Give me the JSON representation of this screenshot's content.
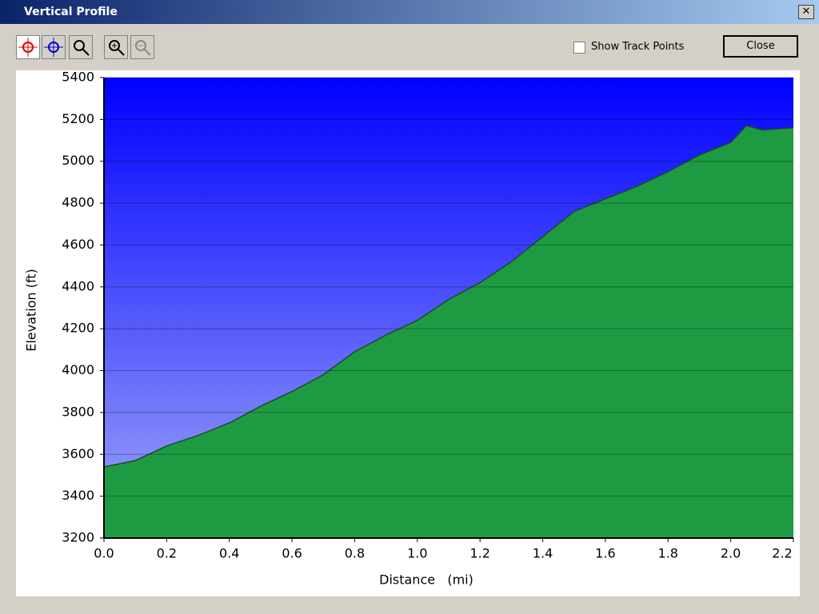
{
  "window": {
    "title": "Vertical Profile",
    "checkbox_label": "Show Track Points",
    "close_button": "Close"
  },
  "chart_data": {
    "type": "area",
    "x_label": "Distance   (mi)",
    "y_label": "Elevation (ft)",
    "x": [
      0,
      0.1,
      0.2,
      0.3,
      0.4,
      0.5,
      0.6,
      0.7,
      0.8,
      0.9,
      1.0,
      1.1,
      1.2,
      1.3,
      1.4,
      1.5,
      1.6,
      1.7,
      1.8,
      1.9,
      2.0,
      2.05,
      2.1,
      2.2
    ],
    "values": [
      3540,
      3570,
      3640,
      3690,
      3750,
      3830,
      3900,
      3980,
      4090,
      4170,
      4240,
      4340,
      4420,
      4520,
      4640,
      4760,
      4820,
      4880,
      4950,
      5030,
      5090,
      5170,
      5150,
      5160
    ],
    "color": "#1fa046",
    "xlim": [
      0,
      2.2
    ],
    "ylim": [
      3200,
      5400
    ],
    "xticks": [
      {
        "value": 0,
        "label": "0.0"
      },
      0.2,
      0.4,
      0.6,
      0.8,
      {
        "value": 1,
        "label": "1.0"
      },
      1.2,
      1.4,
      1.6,
      1.8,
      {
        "value": 2,
        "label": "2.0"
      },
      2.2
    ],
    "yticks": [
      3200,
      3400,
      3600,
      3800,
      4000,
      4200,
      4400,
      4600,
      4800,
      5000,
      5200,
      5400
    ],
    "grid": true
  }
}
